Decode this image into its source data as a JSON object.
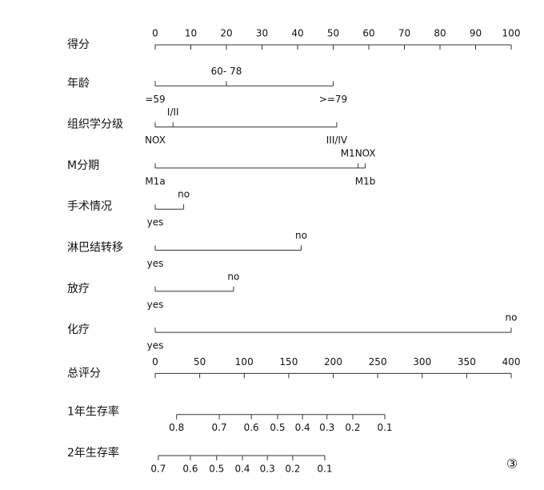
{
  "chart_data": {
    "type": "nomogram",
    "points_axis": {
      "name": "得分",
      "lim": [
        0,
        100
      ],
      "ticks": [
        0,
        10,
        20,
        30,
        40,
        50,
        60,
        70,
        80,
        90,
        100
      ]
    },
    "variables": [
      {
        "name": "年龄",
        "levels": [
          {
            "label": "=59",
            "points": 0,
            "side": "below"
          },
          {
            "label": "60- 78",
            "points": 20,
            "side": "above"
          },
          {
            "label": ">=79",
            "points": 50,
            "side": "below"
          }
        ]
      },
      {
        "name": "组织学分级",
        "levels": [
          {
            "label": "NOX",
            "points": 0,
            "side": "below"
          },
          {
            "label": "I/II",
            "points": 5,
            "side": "above"
          },
          {
            "label": "III/IV",
            "points": 51,
            "side": "below"
          }
        ]
      },
      {
        "name": "M分期",
        "levels": [
          {
            "label": "M1a",
            "points": 0,
            "side": "below"
          },
          {
            "label": "M1NOX",
            "points": 57,
            "side": "above"
          },
          {
            "label": "M1b",
            "points": 59,
            "side": "below"
          }
        ]
      },
      {
        "name": "手术情况",
        "levels": [
          {
            "label": "yes",
            "points": 0,
            "side": "below"
          },
          {
            "label": "no",
            "points": 8,
            "side": "above"
          }
        ]
      },
      {
        "name": "淋巴结转移",
        "levels": [
          {
            "label": "yes",
            "points": 0,
            "side": "below"
          },
          {
            "label": "no",
            "points": 41,
            "side": "above"
          }
        ]
      },
      {
        "name": "放疗",
        "levels": [
          {
            "label": "yes",
            "points": 0,
            "side": "below"
          },
          {
            "label": "no",
            "points": 22,
            "side": "above"
          }
        ]
      },
      {
        "name": "化疗",
        "levels": [
          {
            "label": "yes",
            "points": 0,
            "side": "below"
          },
          {
            "label": "no",
            "points": 100,
            "side": "above"
          }
        ]
      }
    ],
    "total_axis": {
      "name": "总评分",
      "lim": [
        0,
        400
      ],
      "ticks": [
        0,
        50,
        100,
        150,
        200,
        250,
        300,
        350,
        400
      ]
    },
    "outcomes": [
      {
        "name": "1年生存率",
        "scale": [
          {
            "prob": 0.8,
            "points": 24
          },
          {
            "prob": 0.7,
            "points": 72
          },
          {
            "prob": 0.6,
            "points": 108
          },
          {
            "prob": 0.5,
            "points": 137.5
          },
          {
            "prob": 0.4,
            "points": 165.5
          },
          {
            "prob": 0.3,
            "points": 193
          },
          {
            "prob": 0.2,
            "points": 222
          },
          {
            "prob": 0.1,
            "points": 258
          }
        ]
      },
      {
        "name": "2年生存率",
        "scale": [
          {
            "prob": 0.7,
            "points": 3.5
          },
          {
            "prob": 0.6,
            "points": 39.5
          },
          {
            "prob": 0.5,
            "points": 69
          },
          {
            "prob": 0.4,
            "points": 98
          },
          {
            "prob": 0.3,
            "points": 126
          },
          {
            "prob": 0.2,
            "points": 154.5
          },
          {
            "prob": 0.1,
            "points": 190.5
          }
        ]
      }
    ],
    "annotation": "③"
  }
}
